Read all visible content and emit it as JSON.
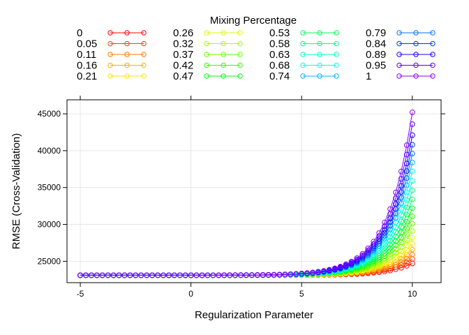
{
  "chart_data": {
    "type": "line",
    "title": "",
    "xlabel": "Regularization Parameter",
    "ylabel": "RMSE (Cross-Validation)",
    "xlim": [
      -5.6,
      11.3
    ],
    "ylim": [
      22100,
      46900
    ],
    "xticks": [
      -5,
      0,
      5,
      10
    ],
    "yticks": [
      25000,
      30000,
      35000,
      40000,
      45000
    ],
    "grid": true,
    "marker": "open-circle",
    "legend": {
      "title": "Mixing Percentage",
      "placement": "top",
      "columns": 4
    },
    "x": {
      "from": -5,
      "to": 10,
      "count": 61
    },
    "baseline": 23100,
    "series": [
      {
        "name": "0",
        "color": "#FF0000",
        "y_at_x10": 24700
      },
      {
        "name": "0.05",
        "color": "#FF3C00",
        "y_at_x10": 25300
      },
      {
        "name": "0.11",
        "color": "#FF7A00",
        "y_at_x10": 25900
      },
      {
        "name": "0.16",
        "color": "#FFAE00",
        "y_at_x10": 26600
      },
      {
        "name": "0.21",
        "color": "#FFE600",
        "y_at_x10": 27400
      },
      {
        "name": "0.26",
        "color": "#D8FF00",
        "y_at_x10": 28200
      },
      {
        "name": "0.32",
        "color": "#A2FF00",
        "y_at_x10": 29100
      },
      {
        "name": "0.37",
        "color": "#6CFF00",
        "y_at_x10": 30100
      },
      {
        "name": "0.42",
        "color": "#33FF00",
        "y_at_x10": 31100
      },
      {
        "name": "0.47",
        "color": "#00FF1A",
        "y_at_x10": 32200
      },
      {
        "name": "0.53",
        "color": "#00FF55",
        "y_at_x10": 33400
      },
      {
        "name": "0.58",
        "color": "#00FF8C",
        "y_at_x10": 34600
      },
      {
        "name": "0.63",
        "color": "#00FFC8",
        "y_at_x10": 35900
      },
      {
        "name": "0.68",
        "color": "#00FFFF",
        "y_at_x10": 37200
      },
      {
        "name": "0.74",
        "color": "#00B4FF",
        "y_at_x10": 38400
      },
      {
        "name": "0.79",
        "color": "#0072FF",
        "y_at_x10": 39600
      },
      {
        "name": "0.84",
        "color": "#0033FF",
        "y_at_x10": 40800
      },
      {
        "name": "0.89",
        "color": "#1400FF",
        "y_at_x10": 42100
      },
      {
        "name": "0.95",
        "color": "#5000FF",
        "y_at_x10": 43600
      },
      {
        "name": "1",
        "color": "#8C00FF",
        "y_at_x10": 45200
      }
    ]
  }
}
